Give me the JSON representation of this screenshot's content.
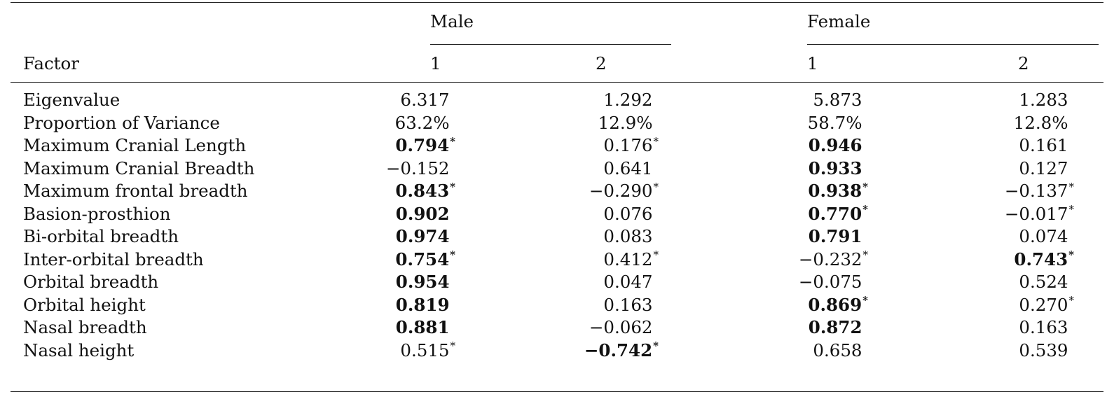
{
  "table": {
    "groups": {
      "male": "Male",
      "female": "Female"
    },
    "columns": {
      "factor": "Factor",
      "male_1": "1",
      "male_2": "2",
      "female_1": "1",
      "female_2": "2"
    },
    "rows": [
      {
        "label": "Eigenvalue",
        "cells": [
          {
            "v": "6.317"
          },
          {
            "v": "1.292"
          },
          {
            "v": "5.873"
          },
          {
            "v": "1.283"
          }
        ]
      },
      {
        "label": "Proportion of Variance",
        "cells": [
          {
            "v": "63.2%"
          },
          {
            "v": "12.9%"
          },
          {
            "v": "58.7%"
          },
          {
            "v": "12.8%"
          }
        ]
      },
      {
        "label": "Maximum Cranial Length",
        "cells": [
          {
            "v": "0.794",
            "b": true,
            "s": true
          },
          {
            "v": "0.176",
            "s": true
          },
          {
            "v": "0.946",
            "b": true
          },
          {
            "v": "0.161"
          }
        ]
      },
      {
        "label": "Maximum Cranial Breadth",
        "cells": [
          {
            "v": "−0.152"
          },
          {
            "v": "0.641"
          },
          {
            "v": "0.933",
            "b": true
          },
          {
            "v": "0.127"
          }
        ]
      },
      {
        "label": "Maximum frontal breadth",
        "cells": [
          {
            "v": "0.843",
            "b": true,
            "s": true
          },
          {
            "v": "−0.290",
            "s": true
          },
          {
            "v": "0.938",
            "b": true,
            "s": true
          },
          {
            "v": "−0.137",
            "s": true
          }
        ]
      },
      {
        "label": "Basion-prosthion",
        "cells": [
          {
            "v": "0.902",
            "b": true
          },
          {
            "v": "0.076"
          },
          {
            "v": "0.770",
            "b": true,
            "s": true
          },
          {
            "v": "−0.017",
            "s": true
          }
        ]
      },
      {
        "label": "Bi-orbital breadth",
        "cells": [
          {
            "v": "0.974",
            "b": true
          },
          {
            "v": "0.083"
          },
          {
            "v": "0.791",
            "b": true
          },
          {
            "v": "0.074"
          }
        ]
      },
      {
        "label": "Inter-orbital breadth",
        "cells": [
          {
            "v": "0.754",
            "b": true,
            "s": true
          },
          {
            "v": "0.412",
            "s": true
          },
          {
            "v": "−0.232",
            "s": true
          },
          {
            "v": "0.743",
            "b": true,
            "s": true
          }
        ]
      },
      {
        "label": "Orbital breadth",
        "cells": [
          {
            "v": "0.954",
            "b": true
          },
          {
            "v": "0.047"
          },
          {
            "v": "−0.075"
          },
          {
            "v": "0.524"
          }
        ]
      },
      {
        "label": "Orbital height",
        "cells": [
          {
            "v": "0.819",
            "b": true
          },
          {
            "v": "0.163"
          },
          {
            "v": "0.869",
            "b": true,
            "s": true
          },
          {
            "v": "0.270",
            "s": true
          }
        ]
      },
      {
        "label": "Nasal breadth",
        "cells": [
          {
            "v": "0.881",
            "b": true
          },
          {
            "v": "−0.062"
          },
          {
            "v": "0.872",
            "b": true
          },
          {
            "v": "0.163"
          }
        ]
      },
      {
        "label": "Nasal height",
        "cells": [
          {
            "v": "0.515",
            "s": true
          },
          {
            "v": "−0.742",
            "b": true,
            "s": true
          },
          {
            "v": "0.658"
          },
          {
            "v": "0.539"
          }
        ]
      }
    ]
  }
}
